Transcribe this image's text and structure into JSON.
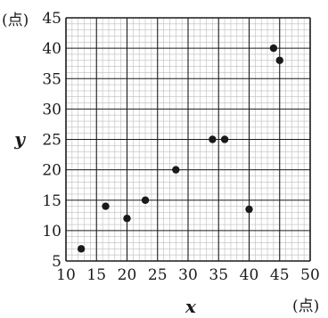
{
  "chart_data": {
    "type": "scatter",
    "xlabel": "x",
    "ylabel": "y",
    "x_unit": "(点)",
    "y_unit": "(点)",
    "xlim": [
      10,
      50
    ],
    "ylim": [
      5,
      45
    ],
    "x_ticks": [
      10,
      15,
      20,
      25,
      30,
      35,
      40,
      45,
      50
    ],
    "y_ticks": [
      5,
      10,
      15,
      20,
      25,
      30,
      35,
      40,
      45
    ],
    "grid": true,
    "minor_grid_step": 1,
    "points": [
      {
        "x": 12.5,
        "y": 7
      },
      {
        "x": 16.5,
        "y": 14
      },
      {
        "x": 20,
        "y": 12
      },
      {
        "x": 23,
        "y": 15
      },
      {
        "x": 28,
        "y": 20
      },
      {
        "x": 34,
        "y": 25
      },
      {
        "x": 36,
        "y": 25
      },
      {
        "x": 40,
        "y": 13.5
      },
      {
        "x": 44,
        "y": 40
      },
      {
        "x": 45,
        "y": 38
      }
    ],
    "colors": {
      "point": "#1a1a1a",
      "major_grid": "#1a1a1a",
      "minor_grid": "#bdbdbd"
    }
  }
}
